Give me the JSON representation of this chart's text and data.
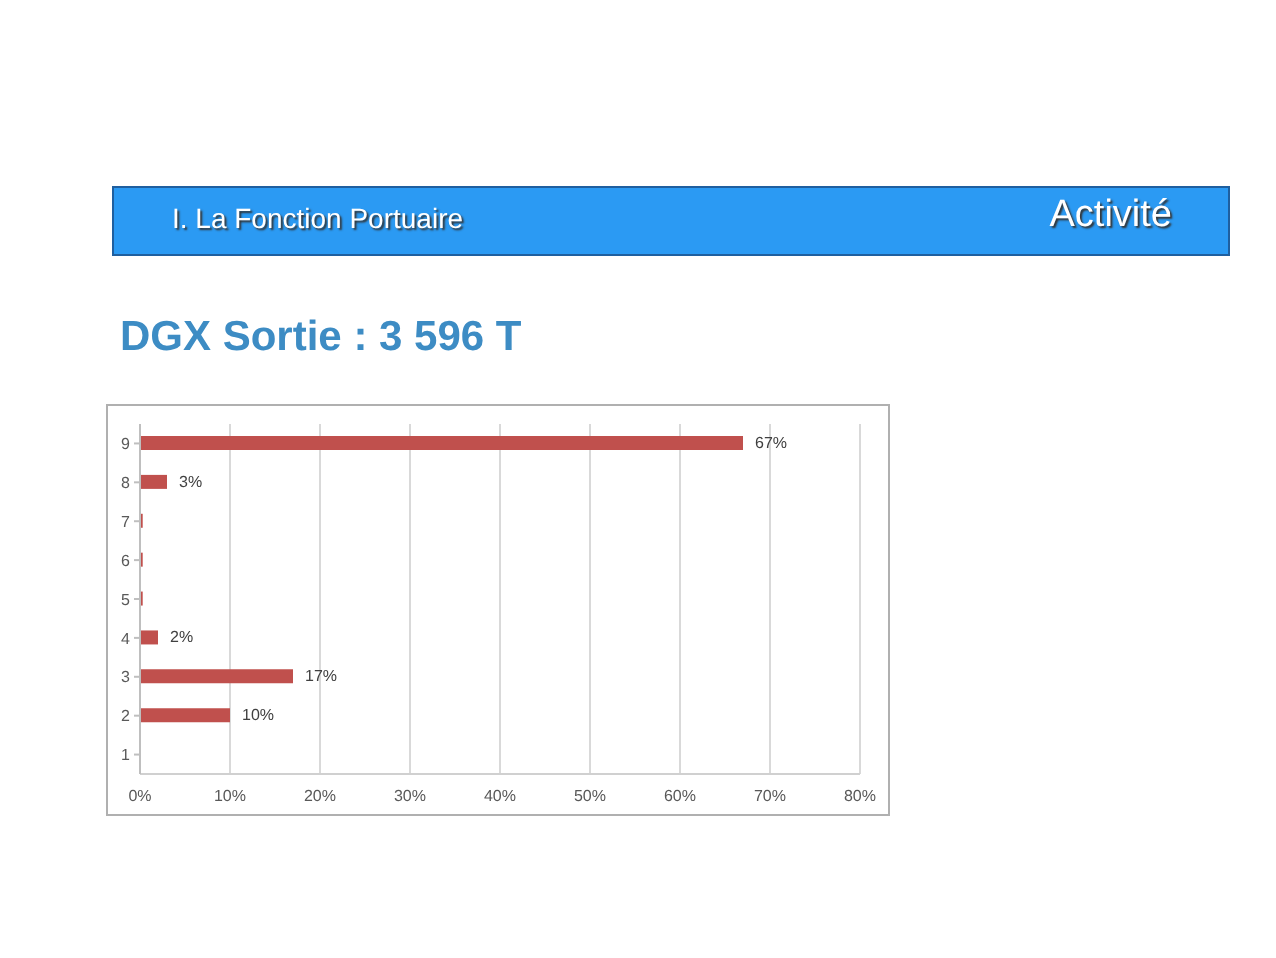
{
  "chart_data": {
    "type": "bar",
    "orientation": "horizontal",
    "title": "DGX Sortie : 3 596 T",
    "annotations": [
      "I. La Fonction Portuaire",
      "Activité"
    ],
    "categories": [
      "9",
      "8",
      "7",
      "6",
      "5",
      "4",
      "3",
      "2",
      "1"
    ],
    "values": [
      67,
      3,
      0.3,
      0.3,
      0.3,
      2,
      17,
      10,
      0
    ],
    "value_labels": [
      "67%",
      "3%",
      null,
      null,
      null,
      "2%",
      "17%",
      "10%",
      null
    ],
    "color": "#c0504d",
    "xlim": [
      0,
      80
    ],
    "xticks": [
      {
        "value": 0,
        "label": "0%"
      },
      {
        "value": 10,
        "label": "10%"
      },
      {
        "value": 20,
        "label": "20%"
      },
      {
        "value": 30,
        "label": "30%"
      },
      {
        "value": 40,
        "label": "40%"
      },
      {
        "value": 50,
        "label": "50%"
      },
      {
        "value": 60,
        "label": "60%"
      },
      {
        "value": 70,
        "label": "70%"
      },
      {
        "value": 80,
        "label": "80%"
      }
    ],
    "grid": "x"
  }
}
